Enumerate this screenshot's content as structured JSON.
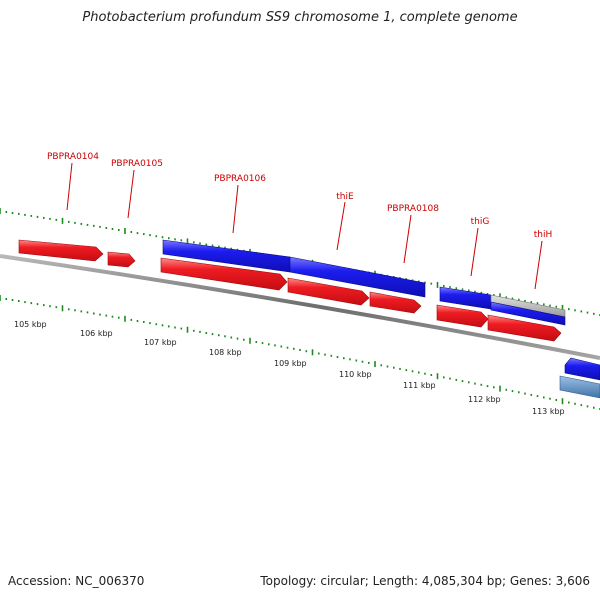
{
  "title": "Photobacterium profundum SS9 chromosome 1, complete genome",
  "footer": {
    "accession": "Accession: NC_006370",
    "stats": "Topology: circular; Length: 4,085,304 bp; Genes: 3,606"
  },
  "colors": {
    "forward_gene": "#e8141a",
    "reverse_gene": "#1a1ae0",
    "unknown_gene": "#a8a8a8",
    "other_gene": "#5a8ec2",
    "label": "#cc0000",
    "tick": "#1e8a1e",
    "backbone": "#7a7a7a"
  },
  "scale_labels": [
    "105 kbp",
    "106 kbp",
    "107 kbp",
    "108 kbp",
    "109 kbp",
    "110 kbp",
    "111 kbp",
    "112 kbp",
    "113 kbp"
  ],
  "gene_labels": [
    "PBPRA0104",
    "PBPRA0105",
    "PBPRA0106",
    "thiE",
    "PBPRA0108",
    "thiG",
    "thiH"
  ]
}
